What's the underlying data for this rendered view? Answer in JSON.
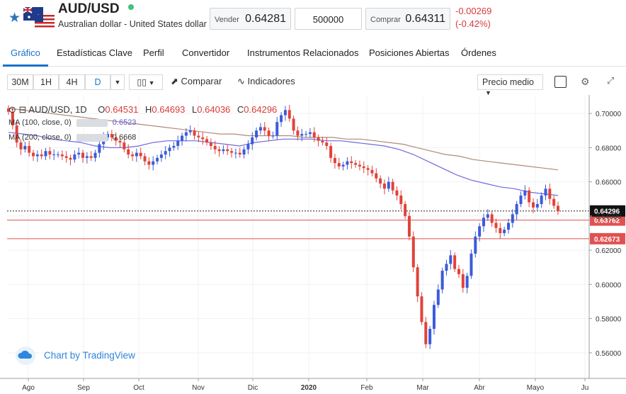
{
  "header": {
    "symbol": "AUD/USD",
    "description": "Australian dollar - United States dollar",
    "sell_label": "Vender",
    "sell_value": "0.64281",
    "amount": "500000",
    "buy_label": "Comprar",
    "buy_value": "0.64311",
    "change": "-0.00269",
    "change_pct": "(-0.42%)",
    "colors": {
      "negative": "#d93a3a",
      "accent": "#1a73c8",
      "live": "#3fc27a"
    }
  },
  "tabs": [
    {
      "label": "Gráfico",
      "active": true
    },
    {
      "label": "Estadísticas Clave"
    },
    {
      "label": "Perfil"
    },
    {
      "label": "Convertidor"
    },
    {
      "label": "Instrumentos Relacionados"
    },
    {
      "label": "Posiciones Abiertas"
    },
    {
      "label": "Órdenes"
    }
  ],
  "toolbar": {
    "intervals": [
      "30M",
      "1H",
      "4H",
      "D"
    ],
    "selected_interval": "D",
    "compare": "Comparar",
    "indicators": "Indicadores",
    "price_type": "Precio medio"
  },
  "legend": {
    "title": "AUD/USD, 1D",
    "o_label": "O",
    "o": "0.64531",
    "h_label": "H",
    "h": "0.64693",
    "l_label": "L",
    "l": "0.64036",
    "c_label": "C",
    "c": "0.64296",
    "ma100_label": "MA (100, close, 0)",
    "ma100": "0.6523",
    "ma200_label": "MA (200, close, 0)",
    "ma200": "0.6668"
  },
  "watermark": "Chart by TradingView",
  "chart_data": {
    "type": "candlestick",
    "ylim": [
      0.545,
      0.71
    ],
    "y_ticks": [
      "0.70000",
      "0.68000",
      "0.66000",
      "0.64000",
      "0.62000",
      "0.60000",
      "0.58000",
      "0.56000"
    ],
    "x_ticks": [
      "Ago",
      "Sep",
      "Oct",
      "Nov",
      "Dic",
      "2020",
      "Feb",
      "Mar",
      "Abr",
      "Mayo",
      "Ju"
    ],
    "last_price": "0.64296",
    "levels": [
      {
        "label": "0.63762",
        "value": 0.63762,
        "color": "#e05252"
      },
      {
        "label": "0.62673",
        "value": 0.62673,
        "color": "#e05252"
      }
    ],
    "close_series": [
      0.701,
      0.693,
      0.683,
      0.679,
      0.681,
      0.677,
      0.675,
      0.676,
      0.675,
      0.678,
      0.676,
      0.676,
      0.676,
      0.675,
      0.674,
      0.673,
      0.676,
      0.677,
      0.674,
      0.675,
      0.674,
      0.677,
      0.682,
      0.686,
      0.688,
      0.686,
      0.684,
      0.683,
      0.679,
      0.676,
      0.675,
      0.677,
      0.675,
      0.672,
      0.67,
      0.672,
      0.674,
      0.676,
      0.678,
      0.68,
      0.681,
      0.684,
      0.687,
      0.689,
      0.69,
      0.687,
      0.686,
      0.685,
      0.683,
      0.681,
      0.679,
      0.678,
      0.679,
      0.678,
      0.677,
      0.677,
      0.676,
      0.679,
      0.682,
      0.686,
      0.69,
      0.692,
      0.69,
      0.687,
      0.687,
      0.695,
      0.699,
      0.702,
      0.697,
      0.69,
      0.687,
      0.688,
      0.688,
      0.689,
      0.686,
      0.684,
      0.683,
      0.681,
      0.674,
      0.671,
      0.669,
      0.67,
      0.672,
      0.671,
      0.67,
      0.669,
      0.668,
      0.667,
      0.665,
      0.662,
      0.659,
      0.656,
      0.66,
      0.655,
      0.652,
      0.647,
      0.64,
      0.628,
      0.61,
      0.593,
      0.578,
      0.565,
      0.574,
      0.588,
      0.597,
      0.608,
      0.612,
      0.617,
      0.609,
      0.606,
      0.598,
      0.605,
      0.618,
      0.628,
      0.634,
      0.639,
      0.641,
      0.636,
      0.633,
      0.63,
      0.632,
      0.636,
      0.641,
      0.647,
      0.652,
      0.655,
      0.648,
      0.645,
      0.647,
      0.652,
      0.656,
      0.65,
      0.646,
      0.643
    ],
    "ma100_series": [
      0.689,
      0.688,
      0.687,
      0.685,
      0.684,
      0.683,
      0.681,
      0.68,
      0.68,
      0.681,
      0.683,
      0.684,
      0.684,
      0.684,
      0.683,
      0.682,
      0.681,
      0.683,
      0.684,
      0.685,
      0.685,
      0.685,
      0.684,
      0.684,
      0.683,
      0.682,
      0.681,
      0.679,
      0.676,
      0.672,
      0.668,
      0.664,
      0.661,
      0.659,
      0.657,
      0.656,
      0.654,
      0.653,
      0.652
    ],
    "ma200_series": [
      0.703,
      0.702,
      0.701,
      0.7,
      0.699,
      0.698,
      0.697,
      0.696,
      0.695,
      0.694,
      0.693,
      0.692,
      0.691,
      0.69,
      0.689,
      0.688,
      0.688,
      0.687,
      0.687,
      0.687,
      0.687,
      0.686,
      0.686,
      0.686,
      0.685,
      0.685,
      0.684,
      0.683,
      0.682,
      0.68,
      0.678,
      0.676,
      0.675,
      0.673,
      0.672,
      0.671,
      0.67,
      0.669,
      0.668,
      0.667
    ]
  }
}
